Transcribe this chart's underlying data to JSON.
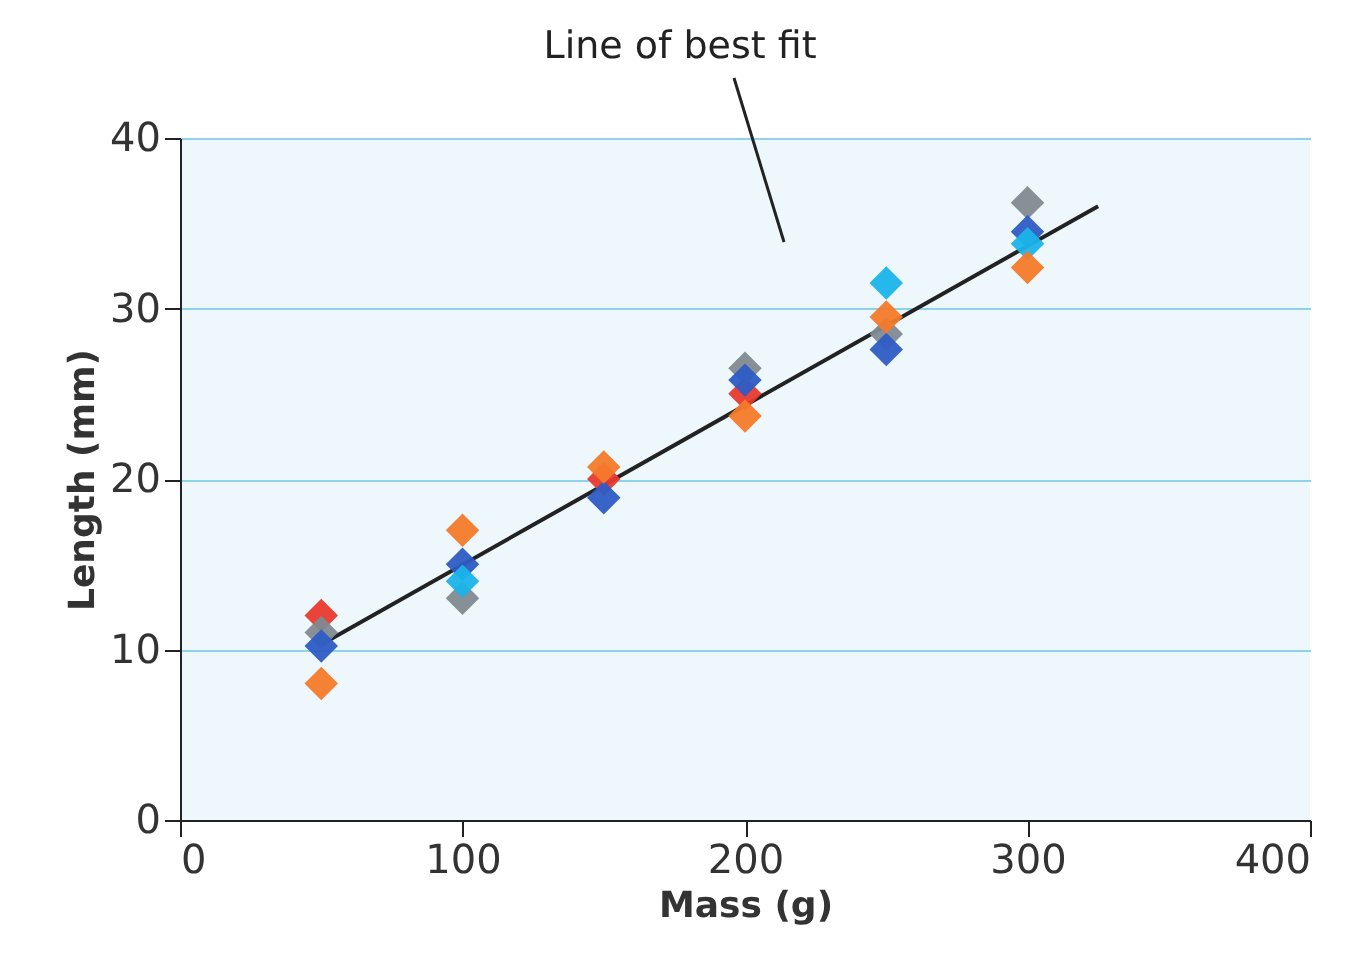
{
  "chart_data": {
    "type": "scatter",
    "xlabel": "Mass (g)",
    "ylabel": "Length (mm)",
    "x": [
      50,
      100,
      150,
      200,
      250,
      300
    ],
    "series": [
      {
        "type": "line",
        "color": "#222222",
        "marker": "none",
        "x": [
          50,
          325
        ],
        "values": [
          10.3,
          36
        ]
      },
      {
        "color": "#e8392f",
        "values": [
          12,
          null,
          20,
          25,
          null,
          null
        ]
      },
      {
        "color": "#7f8a90",
        "values": [
          11,
          13,
          null,
          26.5,
          28.5,
          36.2
        ]
      },
      {
        "color": "#2e5cc4",
        "values": [
          10.2,
          15,
          18.9,
          25.8,
          27.6,
          34.5
        ]
      },
      {
        "color": "#1ab4ea",
        "values": [
          null,
          14,
          null,
          null,
          31.5,
          33.8
        ]
      },
      {
        "color": "#f47a2a",
        "values": [
          8,
          17,
          20.7,
          23.7,
          29.5,
          32.4
        ]
      }
    ],
    "xlim": [
      0,
      400
    ],
    "ylim": [
      0,
      40
    ],
    "xticks": [
      0,
      100,
      200,
      300,
      400
    ],
    "yticks": [
      0,
      10,
      20,
      30,
      40
    ],
    "grid": "y",
    "marker": "diamond",
    "annotations": [
      "Line of best fit"
    ]
  }
}
